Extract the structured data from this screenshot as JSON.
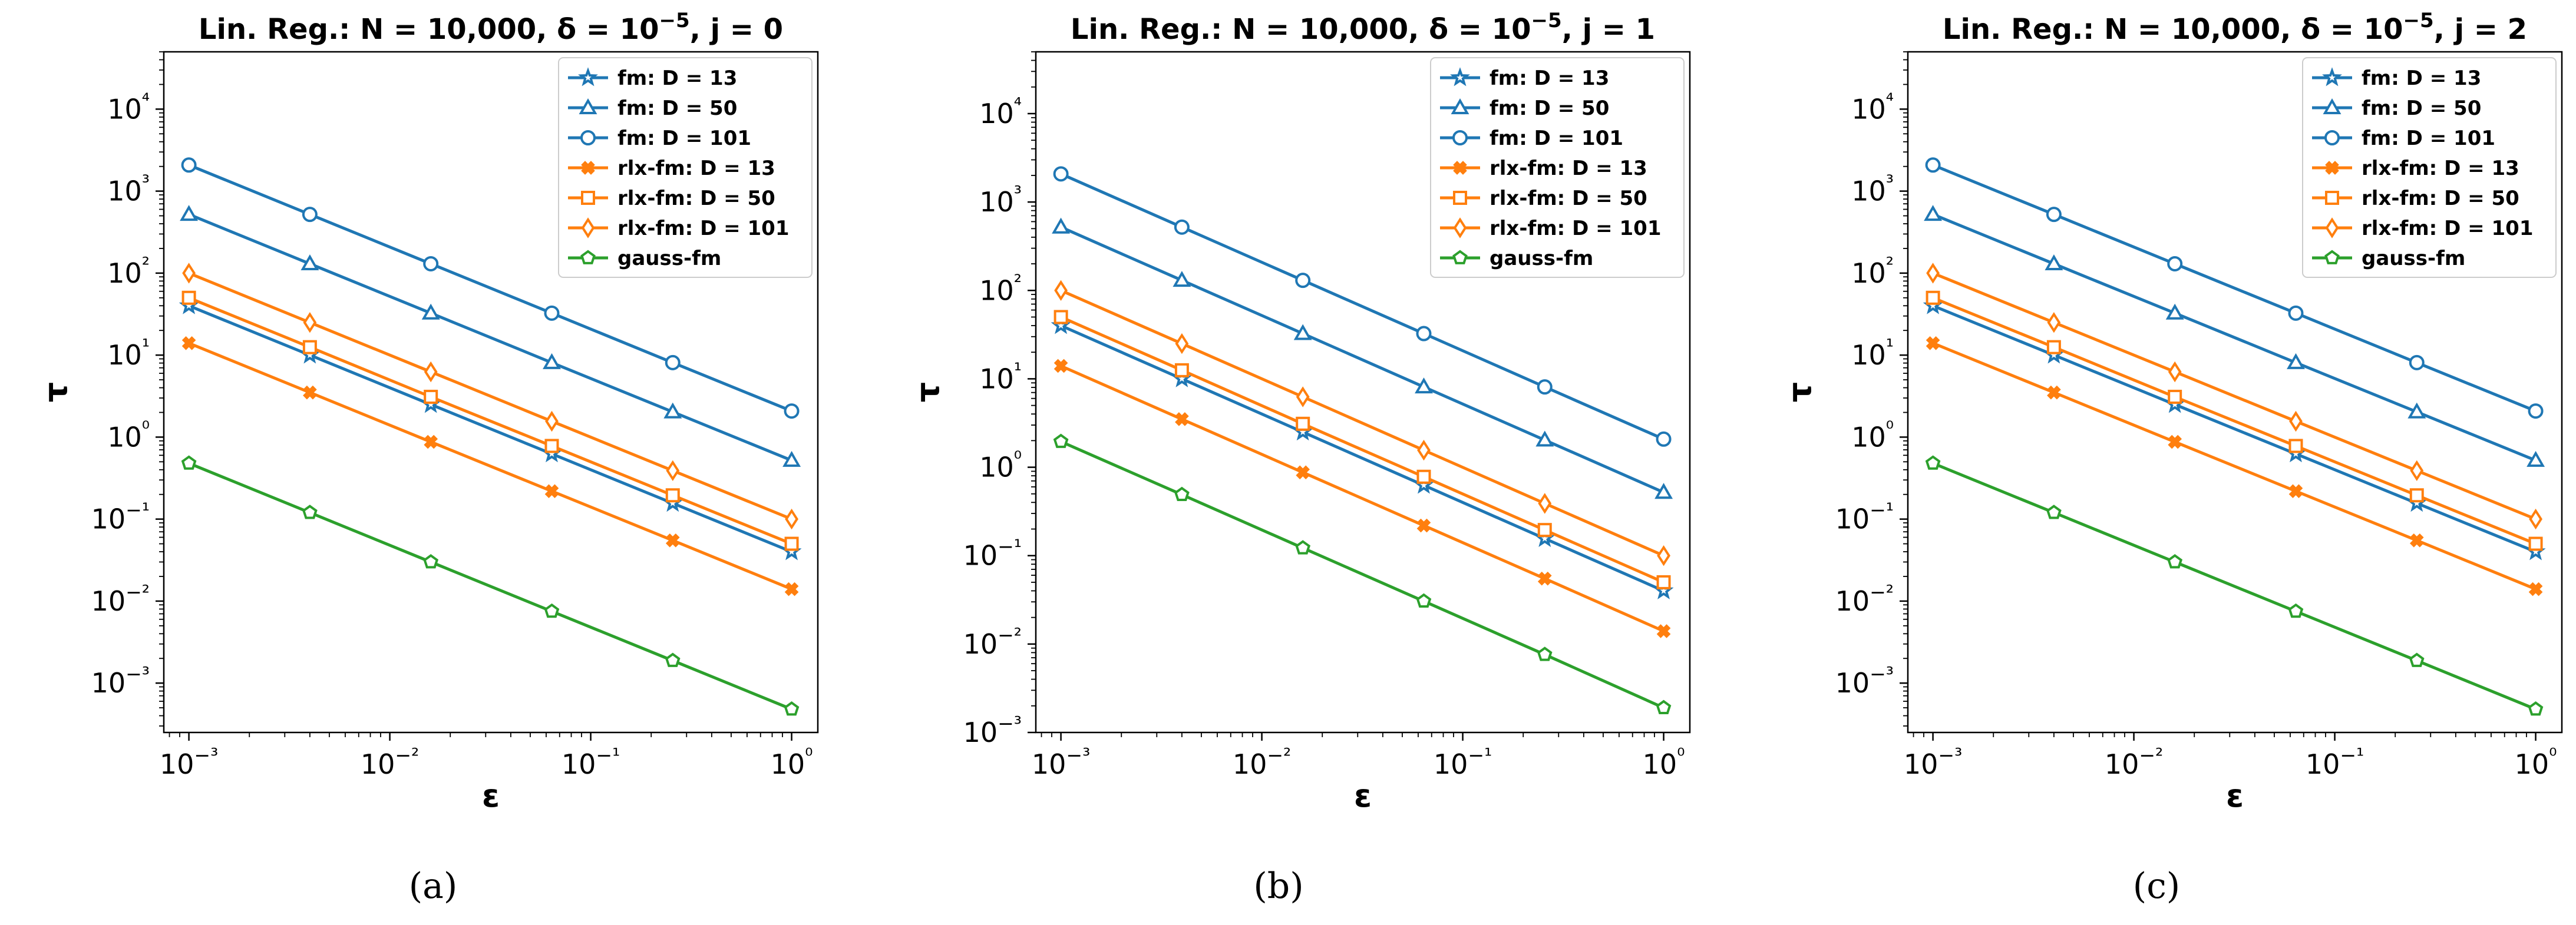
{
  "colors": {
    "fm": "#1f77b4",
    "rlx": "#ff7f0e",
    "gauss": "#2ca02c"
  },
  "chart_data": [
    {
      "type": "line",
      "title_prefix": "Lin. Reg.: N = 10,000, δ = 10",
      "title_exp": "−5",
      "title_suffix": ", j = 0",
      "caption": "(a)",
      "xlabel": "ε",
      "ylabel": "τ",
      "xscale": "log",
      "yscale": "log",
      "xlim": [
        0.00075,
        1.35
      ],
      "ylim": [
        0.00025,
        50000
      ],
      "grid": false,
      "legend_position": "top-right",
      "x": [
        0.001,
        0.004,
        0.016,
        0.064,
        0.256,
        1.0
      ],
      "series": [
        {
          "name": "fm: D = 13",
          "group": "fm",
          "marker": "star",
          "values": [
            40,
            10,
            2.5,
            0.625,
            0.156,
            0.04
          ]
        },
        {
          "name": "fm: D = 50",
          "group": "fm",
          "marker": "triangle",
          "values": [
            520,
            130,
            32.5,
            8.1,
            2.03,
            0.52
          ]
        },
        {
          "name": "fm: D = 101",
          "group": "fm",
          "marker": "circle",
          "values": [
            2080,
            520,
            130,
            32.5,
            8.1,
            2.08
          ]
        },
        {
          "name": "rlx-fm: D = 13",
          "group": "rlx",
          "marker": "x",
          "values": [
            14,
            3.5,
            0.875,
            0.219,
            0.055,
            0.014
          ]
        },
        {
          "name": "rlx-fm: D = 50",
          "group": "rlx",
          "marker": "square",
          "values": [
            50,
            12.5,
            3.1,
            0.78,
            0.195,
            0.05
          ]
        },
        {
          "name": "rlx-fm: D = 101",
          "group": "rlx",
          "marker": "diamond",
          "values": [
            100,
            25,
            6.25,
            1.56,
            0.39,
            0.1
          ]
        },
        {
          "name": "gauss-fm",
          "group": "gauss",
          "marker": "pentagon",
          "values": [
            0.48,
            0.12,
            0.03,
            0.0075,
            0.00188,
            0.00048
          ]
        }
      ]
    },
    {
      "type": "line",
      "title_prefix": "Lin. Reg.: N = 10,000, δ = 10",
      "title_exp": "−5",
      "title_suffix": ", j = 1",
      "caption": "(b)",
      "xlabel": "ε",
      "ylabel": "τ",
      "xscale": "log",
      "yscale": "log",
      "xlim": [
        0.00075,
        1.35
      ],
      "ylim": [
        0.001,
        50000
      ],
      "grid": false,
      "legend_position": "top-right",
      "x": [
        0.001,
        0.004,
        0.016,
        0.064,
        0.256,
        1.0
      ],
      "series": [
        {
          "name": "fm: D = 13",
          "group": "fm",
          "marker": "star",
          "values": [
            40,
            10,
            2.5,
            0.625,
            0.156,
            0.04
          ]
        },
        {
          "name": "fm: D = 50",
          "group": "fm",
          "marker": "triangle",
          "values": [
            520,
            130,
            32.5,
            8.1,
            2.03,
            0.52
          ]
        },
        {
          "name": "fm: D = 101",
          "group": "fm",
          "marker": "circle",
          "values": [
            2080,
            520,
            130,
            32.5,
            8.1,
            2.08
          ]
        },
        {
          "name": "rlx-fm: D = 13",
          "group": "rlx",
          "marker": "x",
          "values": [
            14,
            3.5,
            0.875,
            0.219,
            0.055,
            0.014
          ]
        },
        {
          "name": "rlx-fm: D = 50",
          "group": "rlx",
          "marker": "square",
          "values": [
            50,
            12.5,
            3.1,
            0.78,
            0.195,
            0.05
          ]
        },
        {
          "name": "rlx-fm: D = 101",
          "group": "rlx",
          "marker": "diamond",
          "values": [
            100,
            25,
            6.25,
            1.56,
            0.39,
            0.1
          ]
        },
        {
          "name": "gauss-fm",
          "group": "gauss",
          "marker": "pentagon",
          "values": [
            1.95,
            0.49,
            0.122,
            0.0305,
            0.0076,
            0.0019
          ]
        }
      ]
    },
    {
      "type": "line",
      "title_prefix": "Lin. Reg.: N = 10,000, δ = 10",
      "title_exp": "−5",
      "title_suffix": ", j = 2",
      "caption": "(c)",
      "xlabel": "ε",
      "ylabel": "τ",
      "xscale": "log",
      "yscale": "log",
      "xlim": [
        0.00075,
        1.35
      ],
      "ylim": [
        0.00025,
        50000
      ],
      "grid": false,
      "legend_position": "top-right",
      "x": [
        0.001,
        0.004,
        0.016,
        0.064,
        0.256,
        1.0
      ],
      "series": [
        {
          "name": "fm: D = 13",
          "group": "fm",
          "marker": "star",
          "values": [
            40,
            10,
            2.5,
            0.625,
            0.156,
            0.04
          ]
        },
        {
          "name": "fm: D = 50",
          "group": "fm",
          "marker": "triangle",
          "values": [
            520,
            130,
            32.5,
            8.1,
            2.03,
            0.52
          ]
        },
        {
          "name": "fm: D = 101",
          "group": "fm",
          "marker": "circle",
          "values": [
            2080,
            520,
            130,
            32.5,
            8.1,
            2.08
          ]
        },
        {
          "name": "rlx-fm: D = 13",
          "group": "rlx",
          "marker": "x",
          "values": [
            14,
            3.5,
            0.875,
            0.219,
            0.055,
            0.014
          ]
        },
        {
          "name": "rlx-fm: D = 50",
          "group": "rlx",
          "marker": "square",
          "values": [
            50,
            12.5,
            3.1,
            0.78,
            0.195,
            0.05
          ]
        },
        {
          "name": "rlx-fm: D = 101",
          "group": "rlx",
          "marker": "diamond",
          "values": [
            100,
            25,
            6.25,
            1.56,
            0.39,
            0.1
          ]
        },
        {
          "name": "gauss-fm",
          "group": "gauss",
          "marker": "pentagon",
          "values": [
            0.48,
            0.12,
            0.03,
            0.0075,
            0.00188,
            0.00048
          ]
        }
      ]
    }
  ]
}
